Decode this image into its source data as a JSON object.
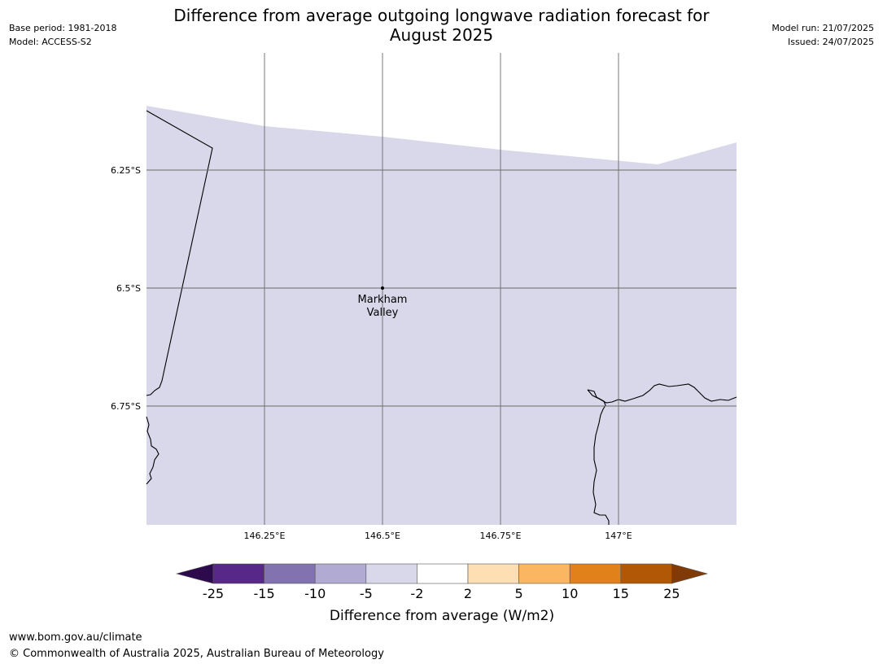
{
  "header": {
    "title_line1": "Difference from average outgoing longwave radiation forecast for",
    "title_line2": "August 2025",
    "base_period": "Base period: 1981-2018",
    "model": "Model: ACCESS-S2",
    "model_run": "Model run: 21/07/2025",
    "issued": "Issued: 24/07/2025"
  },
  "map": {
    "fill_color": "#d8d8ea",
    "lat_labels": [
      "6.25°S",
      "6.5°S",
      "6.75°S"
    ],
    "lon_labels": [
      "146.25°E",
      "146.5°E",
      "146.75°E",
      "147°E"
    ],
    "place_label_line1": "Markham",
    "place_label_line2": "Valley"
  },
  "colorbar": {
    "title": "Difference from average (W/m2)",
    "tick_labels": [
      "-25",
      "-15",
      "-10",
      "-5",
      "-2",
      "2",
      "5",
      "10",
      "15",
      "25"
    ],
    "colors": {
      "below_min": "#2d0a4b",
      "bins": [
        "#572887",
        "#8272b0",
        "#b1aad2",
        "#d8d8ea",
        "#ffffff",
        "#fddfb3",
        "#fbb661",
        "#e1811a",
        "#b15806"
      ],
      "above_max": "#7f3a08"
    }
  },
  "footer": {
    "url": "www.bom.gov.au/climate",
    "copyright": "© Commonwealth of Australia 2025, Australian Bureau of Meteorology"
  }
}
